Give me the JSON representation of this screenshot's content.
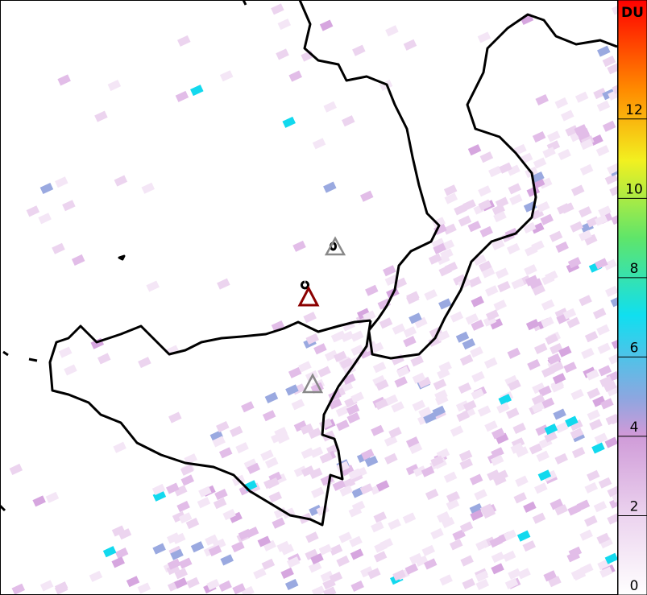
{
  "colorbar": {
    "label": "DU",
    "range": [
      0,
      15
    ],
    "ticks": [
      0,
      2,
      4,
      6,
      8,
      10,
      12
    ]
  }
}
